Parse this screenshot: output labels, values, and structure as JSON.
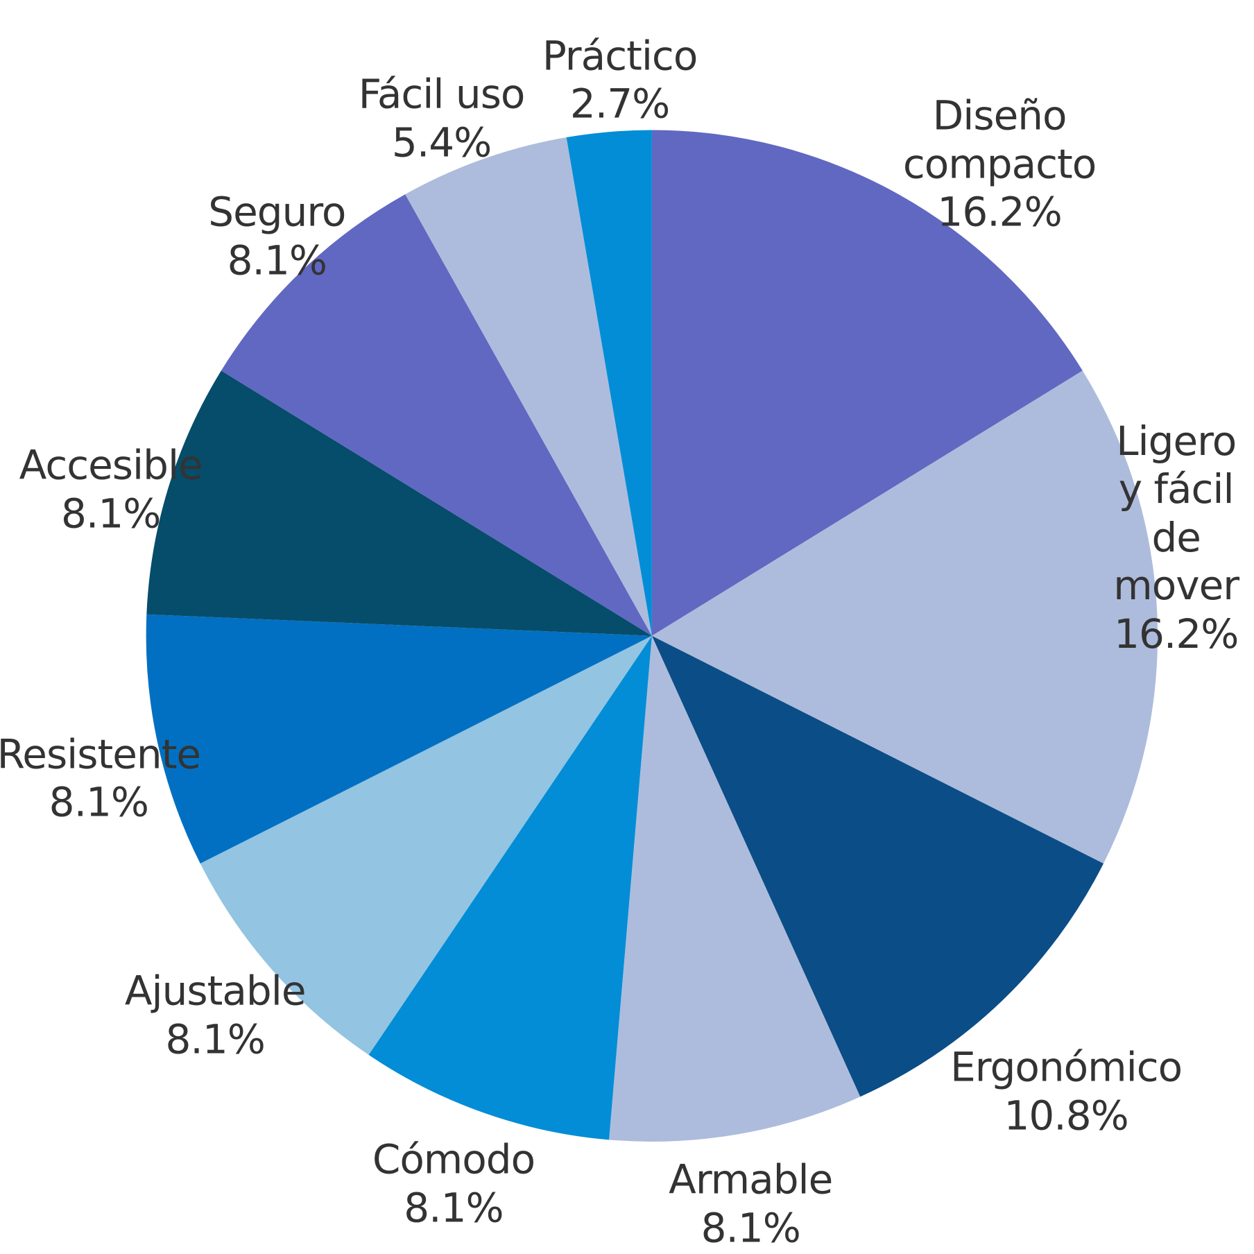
{
  "chart_data": {
    "type": "pie",
    "categories": [
      "Diseño compacto",
      "Ligero y fácil de mover",
      "Ergonómico",
      "Armable",
      "Cómodo",
      "Ajustable",
      "Resistente",
      "Accesible",
      "Seguro",
      "Fácil uso",
      "Práctico"
    ],
    "values": [
      16.2,
      16.2,
      10.8,
      8.1,
      8.1,
      8.1,
      8.1,
      8.1,
      8.1,
      5.4,
      2.7
    ],
    "value_labels": [
      "16.2%",
      "16.2%",
      "10.8%",
      "8.1%",
      "8.1%",
      "8.1%",
      "8.1%",
      "8.1%",
      "8.1%",
      "5.4%",
      "2.7%"
    ],
    "colors": [
      "#6068c2",
      "#adbcdc",
      "#0b4d86",
      "#adbcdc",
      "#028dd6",
      "#93c4e2",
      "#0270c2",
      "#054d6a",
      "#6068c2",
      "#adbcdc",
      "#028dd6"
    ]
  }
}
